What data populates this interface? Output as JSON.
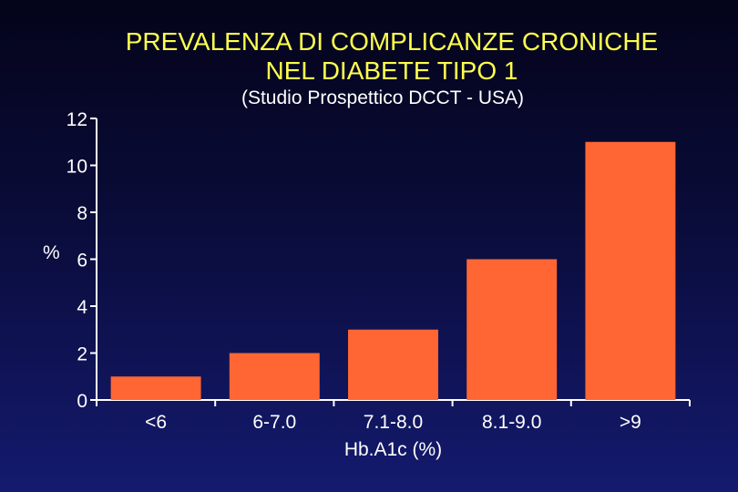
{
  "chart_data": {
    "type": "bar",
    "title_lines": [
      "PREVALENZA DI COMPLICANZE CRONICHE",
      "NEL DIABETE TIPO 1"
    ],
    "subtitle": "(Studio Prospettico DCCT - USA)",
    "ylabel": "%",
    "xlabel": "Hb.A1c (%)",
    "categories": [
      "<6",
      "6-7.0",
      "7.1-8.0",
      "8.1-9.0",
      ">9"
    ],
    "values": [
      1,
      2,
      3,
      6,
      11
    ],
    "ylim": [
      0,
      12
    ],
    "yticks": [
      "0",
      "2",
      "4",
      "6",
      "8",
      "10",
      "12"
    ],
    "grid": false,
    "colors": {
      "bar": "#ff6633",
      "title": "#ffff4d",
      "text": "#ffffff"
    }
  }
}
